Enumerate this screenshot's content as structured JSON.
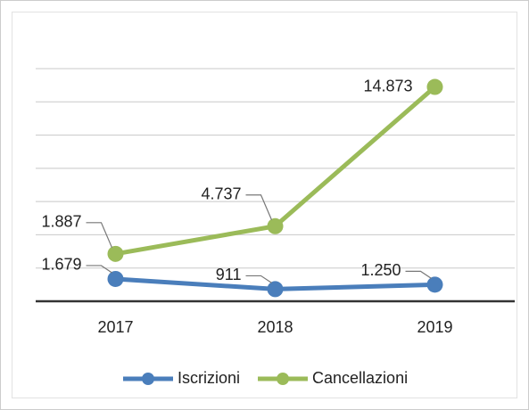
{
  "chart_data": {
    "type": "line",
    "stacked": true,
    "categories": [
      "2017",
      "2018",
      "2019"
    ],
    "series": [
      {
        "name": "Iscrizioni",
        "color": "#4a7ebb",
        "values": [
          1679,
          911,
          1250
        ],
        "value_labels": [
          "1.679",
          "911",
          "1.250"
        ]
      },
      {
        "name": "Cancellazioni",
        "color": "#9bbb59",
        "values": [
          1887,
          4737,
          14873
        ],
        "value_labels": [
          "1.887",
          "4.737",
          "14.873"
        ]
      }
    ],
    "ylim": [
      0,
      17500
    ],
    "yticks": [
      0,
      2500,
      5000,
      7500,
      10000,
      12500,
      15000,
      17500
    ],
    "grid": true,
    "legend": "bottom"
  }
}
